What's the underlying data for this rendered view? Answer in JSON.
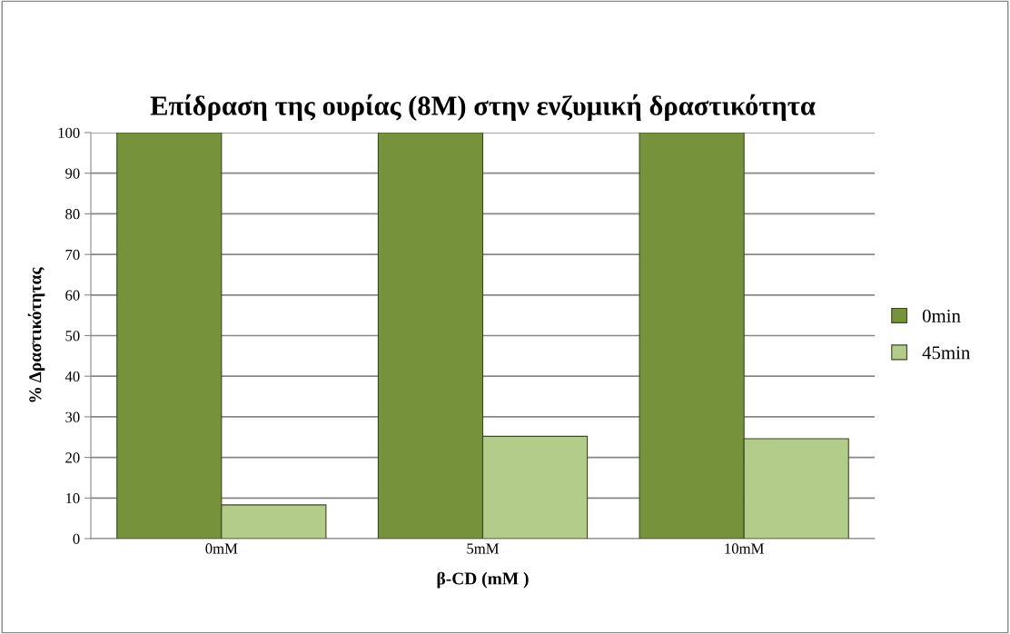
{
  "chart_data": {
    "type": "bar",
    "title": "Επίδραση της ουρίας (8M) στην ενζυμική δραστικότητα",
    "xlabel": "β-CD (mM )",
    "ylabel": "% Δραστικότητας",
    "categories": [
      "0mM",
      "5mM",
      "10mM"
    ],
    "series": [
      {
        "name": "0min",
        "color": "#76933c",
        "values": [
          100,
          100,
          100
        ]
      },
      {
        "name": "45min",
        "color": "#b3cc8a",
        "values": [
          8.3,
          25.2,
          24.6
        ]
      }
    ],
    "ylim": [
      0,
      100
    ],
    "yticks": [
      0,
      10,
      20,
      30,
      40,
      50,
      60,
      70,
      80,
      90,
      100
    ],
    "grid": "y",
    "legend": "right"
  }
}
